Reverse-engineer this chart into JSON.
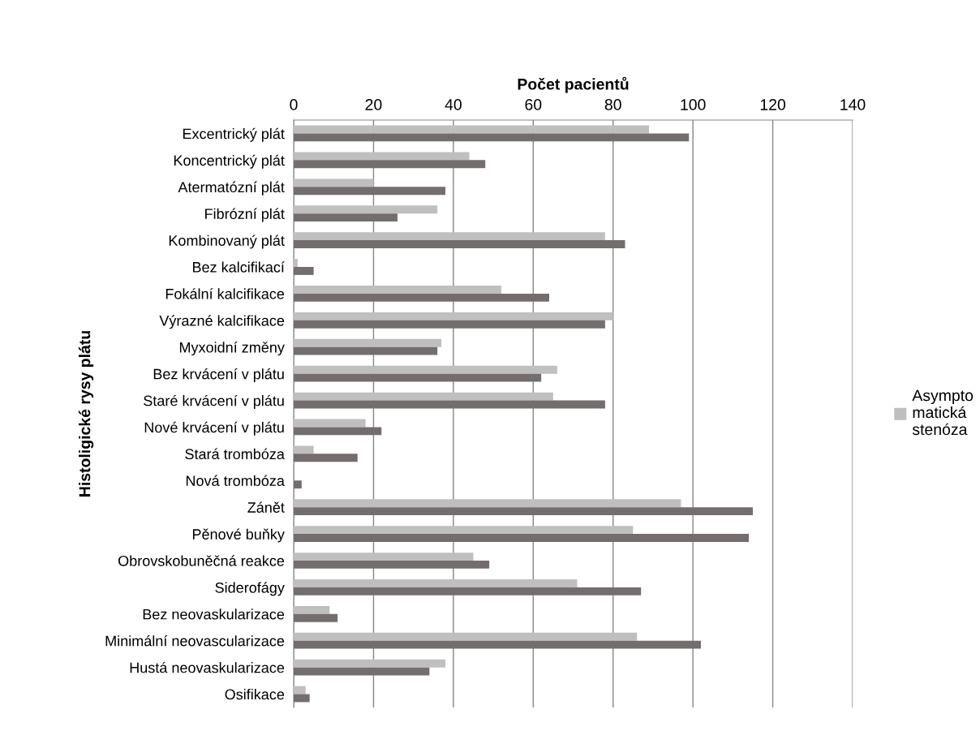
{
  "chart_data": {
    "type": "bar",
    "orientation": "horizontal",
    "xlabel": "Počet pacientů",
    "ylabel": "Histoligické rysy plátu",
    "categories": [
      "Excentrický plát",
      "Koncentrický plát",
      "Atermatózní plát",
      "Fibrózní plát",
      "Kombinovaný plát",
      "Bez kalcifikací",
      "Fokální kalcifikace",
      "Výrazné kalcifikace",
      "Myxoidní změny",
      "Bez krvácení v plátu",
      "Staré krvácení v plátu",
      "Nové krvácení v plátu",
      "Stará trombóza",
      "Nová trombóza",
      "Zánět",
      "Pěnové buňky",
      "Obrovskobuněčná reakce",
      "Siderofágy",
      "Bez neovaskularizace",
      "Minimální neovascularizace",
      "Hustá neovaskularizace",
      "Osifikace"
    ],
    "series": [
      {
        "name": "Asympto\nmatická\nstenóza",
        "color": "#bfbfbf",
        "values": [
          89,
          44,
          20,
          36,
          78,
          1,
          52,
          80,
          37,
          66,
          65,
          18,
          5,
          0,
          97,
          85,
          45,
          71,
          9,
          86,
          38,
          3
        ]
      },
      {
        "color": "#736e6d",
        "values": [
          99,
          48,
          38,
          26,
          83,
          5,
          64,
          78,
          36,
          62,
          78,
          22,
          16,
          2,
          115,
          114,
          49,
          87,
          11,
          102,
          34,
          4
        ]
      }
    ],
    "xlim": [
      0,
      140
    ],
    "xticks": [
      0,
      20,
      40,
      60,
      80,
      100,
      120,
      140
    ],
    "grid": "x",
    "legend": "right"
  }
}
